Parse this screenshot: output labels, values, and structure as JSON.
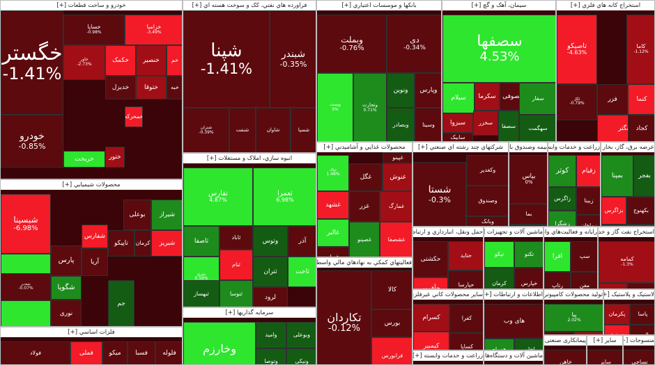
{
  "colors": {
    "strong_green": "#2ee62e",
    "green": "#1d8c1d",
    "dark_green": "#145c14",
    "neutral_dark": "#551012",
    "dark_red": "#5c0a0e",
    "red": "#a20e16",
    "bright_red": "#f21b27",
    "header_bg": "#ffffff"
  },
  "sectors": [
    {
      "id": "auto",
      "title": "خودرو و ساخت قطعات [+]",
      "tiles": [
        {
          "n": "خگستر",
          "p": "-1.41%",
          "c": "dark_red"
        },
        {
          "n": "خودرو",
          "p": "-0.85%",
          "c": "dark_red"
        },
        {
          "n": "خساپا",
          "p": "-0.98%",
          "c": "dark_red"
        },
        {
          "n": "خزامیا",
          "p": "-3.49%",
          "c": "bright_red"
        },
        {
          "n": "خاور",
          "p": "-2.73%",
          "c": "red"
        },
        {
          "n": "خکمک",
          "p": "",
          "c": "bright_red"
        },
        {
          "n": "خنصیر",
          "p": "",
          "c": "red"
        },
        {
          "n": "خم",
          "p": "",
          "c": "bright_red"
        },
        {
          "n": "خدیزل",
          "p": "",
          "c": "dark_red"
        },
        {
          "n": "ختوقا",
          "p": "",
          "c": "red"
        },
        {
          "n": "خبه",
          "p": "",
          "c": "dark_red"
        },
        {
          "n": "خریخت",
          "p": "",
          "c": "strong_green"
        },
        {
          "n": "ختور",
          "p": "",
          "c": "red"
        },
        {
          "n": "خمحرکه",
          "p": "",
          "c": "bright_red"
        }
      ]
    },
    {
      "id": "refining",
      "title": "فراورده هاي نفتي، كک و سوخت هسته اي [+]",
      "tiles": [
        {
          "n": "شپنا",
          "p": "-1.41%",
          "c": "dark_red"
        },
        {
          "n": "شبندر",
          "p": "-0.35%",
          "c": "dark_red"
        },
        {
          "n": "شتران",
          "p": "-0.39%",
          "c": "dark_red"
        },
        {
          "n": "شنفت",
          "p": "",
          "c": "dark_red"
        },
        {
          "n": "شاوان",
          "p": "",
          "c": "dark_red"
        },
        {
          "n": "شسپا",
          "p": "",
          "c": "dark_red"
        }
      ]
    },
    {
      "id": "banks",
      "title": "بانكها و موسسات اعتباري [+]",
      "tiles": [
        {
          "n": "وبملت",
          "p": "-0.76%",
          "c": "dark_red"
        },
        {
          "n": "دی",
          "p": "-0.34%",
          "c": "dark_red"
        },
        {
          "n": "وپست",
          "p": "5%",
          "c": "strong_green"
        },
        {
          "n": "وتجارت",
          "p": "0.71%",
          "c": "green"
        },
        {
          "n": "ونوین",
          "p": "",
          "c": "dark_green"
        },
        {
          "n": "وپارس",
          "p": "",
          "c": "dark_red"
        },
        {
          "n": "وبصادر",
          "p": "",
          "c": "dark_green"
        },
        {
          "n": "وسینا",
          "p": "",
          "c": "dark_red"
        }
      ]
    },
    {
      "id": "cement",
      "title": "سيمان، آهک و گچ [+]",
      "tiles": [
        {
          "n": "سصفها",
          "p": "4.53%",
          "c": "strong_green"
        },
        {
          "n": "سیلام",
          "p": "",
          "c": "strong_green"
        },
        {
          "n": "سکرما",
          "p": "",
          "c": "red"
        },
        {
          "n": "سصوفی",
          "p": "",
          "c": "dark_red"
        },
        {
          "n": "سبزوا",
          "p": "",
          "c": "red"
        },
        {
          "n": "سخزر",
          "p": "",
          "c": "red"
        },
        {
          "n": "سابیک",
          "p": "",
          "c": "dark_red"
        },
        {
          "n": "سصفا",
          "p": "",
          "c": "dark_green"
        },
        {
          "n": "سفار",
          "p": "",
          "c": "green"
        },
        {
          "n": "سهگمت",
          "p": "",
          "c": "dark_green"
        }
      ]
    },
    {
      "id": "metalmine",
      "title": "استخراج كانه هاي فلزي [+]",
      "tiles": [
        {
          "n": "تاصیکو",
          "p": "-4.63%",
          "c": "bright_red"
        },
        {
          "n": "کاما",
          "p": "-1.12%",
          "c": "red"
        },
        {
          "n": "کگل",
          "p": "-0.79%",
          "c": "dark_red"
        },
        {
          "n": "فزر",
          "p": "",
          "c": "dark_red"
        },
        {
          "n": "کنما",
          "p": "",
          "c": "bright_red"
        },
        {
          "n": "کهنگتر",
          "p": "",
          "c": "bright_red"
        },
        {
          "n": "کجاد",
          "p": "",
          "c": "dark_red"
        },
        {
          "n": "کچاد",
          "p": "",
          "c": "dark_red"
        }
      ]
    },
    {
      "id": "chemical",
      "title": "محصولات شيميايي [+]",
      "tiles": [
        {
          "n": "شبسینا",
          "p": "-6.98%",
          "c": "bright_red"
        },
        {
          "n": "شیراز",
          "p": "",
          "c": "green"
        },
        {
          "n": "بوعلی",
          "p": "",
          "c": "dark_red"
        },
        {
          "n": "پارس",
          "p": "",
          "c": "dark_red"
        },
        {
          "n": "شفارس",
          "p": "",
          "c": "bright_red"
        },
        {
          "n": "تاپیکو",
          "p": "",
          "c": "dark_red"
        },
        {
          "n": "کرمان",
          "p": "",
          "c": "dark_red"
        },
        {
          "n": "شبریز",
          "p": "",
          "c": "bright_red"
        },
        {
          "n": "آریا",
          "p": "",
          "c": "dark_red"
        },
        {
          "n": "شگویا",
          "p": "",
          "c": "green"
        },
        {
          "n": "نوری",
          "p": "",
          "c": "dark_red"
        },
        {
          "n": "شپدیس",
          "p": "",
          "c": "strong_green"
        },
        {
          "n": "شغدیر",
          "p": "-0.07%",
          "c": "dark_red"
        },
        {
          "n": "جم",
          "p": "",
          "c": "dark_green"
        }
      ]
    },
    {
      "id": "realestate",
      "title": "انبوه سازي، املاک و مستغلات [+]",
      "tiles": [
        {
          "n": "تفارس",
          "p": "4.87%",
          "c": "strong_green"
        },
        {
          "n": "ثعمرا",
          "p": "6.98%",
          "c": "strong_green"
        },
        {
          "n": "ثاصفا",
          "p": "",
          "c": "green"
        },
        {
          "n": "ثشرق",
          "p": "6.59%",
          "c": "strong_green"
        },
        {
          "n": "وتوس",
          "p": "",
          "c": "dark_green"
        },
        {
          "n": "آذر",
          "p": "",
          "c": "dark_red"
        },
        {
          "n": "ثتران",
          "p": "",
          "c": "dark_green"
        },
        {
          "n": "ثاخت",
          "p": "",
          "c": "strong_green"
        },
        {
          "n": "ثاباد",
          "p": "",
          "c": "dark_red"
        },
        {
          "n": "ثنام",
          "p": "",
          "c": "bright_red"
        },
        {
          "n": "ثبهساز",
          "p": "",
          "c": "dark_green"
        },
        {
          "n": "ثنوسا",
          "p": "",
          "c": "green"
        },
        {
          "n": "لرود",
          "p": "",
          "c": "dark_red"
        },
        {
          "n": "تسکن",
          "p": "",
          "c": "strong_green"
        }
      ]
    },
    {
      "id": "food",
      "title": "محصولات غذايي و آشاميدني [+]",
      "tiles": [
        {
          "n": "غپاک",
          "p": "1.48%",
          "c": "strong_green"
        },
        {
          "n": "غنوش",
          "p": "",
          "c": "red"
        },
        {
          "n": "غگل",
          "p": "",
          "c": "dark_red"
        },
        {
          "n": "غشهد",
          "p": "",
          "c": "bright_red"
        },
        {
          "n": "غدام",
          "p": "",
          "c": "dark_green"
        },
        {
          "n": "غزر",
          "p": "",
          "c": "dark_red"
        },
        {
          "n": "غمارگ",
          "p": "",
          "c": "red"
        },
        {
          "n": "غالبر",
          "p": "",
          "c": "strong_green"
        },
        {
          "n": "غبهار",
          "p": "",
          "c": "dark_red"
        },
        {
          "n": "غصینو",
          "p": "",
          "c": "green"
        },
        {
          "n": "غشصفا",
          "p": "",
          "c": "bright_red"
        },
        {
          "n": "غپینو",
          "p": "",
          "c": "dark_red"
        }
      ]
    },
    {
      "id": "multi",
      "title": "شرکتهاي چند رشته اي صنعتي [+]",
      "tiles": [
        {
          "n": "شستا",
          "p": "-0.3%",
          "c": "dark_red"
        },
        {
          "n": "وکغدیر",
          "p": "",
          "c": "dark_red"
        },
        {
          "n": "وصندوق",
          "p": "",
          "c": "dark_red"
        },
        {
          "n": "وبانک",
          "p": "",
          "c": "dark_red"
        },
        {
          "n": "وسپه",
          "p": "",
          "c": "red"
        }
      ]
    },
    {
      "id": "insurance",
      "title": "بیمه وصندوق بازنشستگی [+]",
      "tiles": [
        {
          "n": "بپاس",
          "p": "0%",
          "c": "dark_red"
        },
        {
          "n": "بما",
          "p": "",
          "c": "dark_red"
        },
        {
          "n": "دانا",
          "p": "",
          "c": "dark_red"
        },
        {
          "n": "بالبر",
          "p": "",
          "c": "dark_red"
        }
      ]
    },
    {
      "id": "agri",
      "title": "زراعت و خدمات وابسته [+]",
      "tiles": [
        {
          "n": "کوثر",
          "p": "",
          "c": "green"
        },
        {
          "n": "زاگرس",
          "p": "",
          "c": "dark_green"
        },
        {
          "n": "زقیام",
          "p": "",
          "c": "bright_red"
        },
        {
          "n": "زشگزا",
          "p": "",
          "c": "green"
        },
        {
          "n": "زبینا",
          "p": "",
          "c": "dark_red"
        },
        {
          "n": "زماهان",
          "p": "",
          "c": "dark_red"
        }
      ]
    },
    {
      "id": "wholesale",
      "title": "عرضه برق، گاز، بخار و آب گرم [+]",
      "tiles": [
        {
          "n": "بمپنا",
          "p": "",
          "c": "green"
        },
        {
          "n": "بفجر",
          "p": "",
          "c": "dark_green"
        },
        {
          "n": "بزاگرس",
          "p": "",
          "c": "bright_red"
        },
        {
          "n": "بکهنوج",
          "p": "",
          "c": "dark_red"
        },
        {
          "n": "بسویچ",
          "p": "",
          "c": "red"
        }
      ]
    },
    {
      "id": "basicmetals",
      "title": "فلزات اساسي [+]",
      "tiles": [
        {
          "n": "فلوله",
          "p": "",
          "c": "dark_red"
        },
        {
          "n": "فسبا",
          "p": "",
          "c": "dark_red"
        },
        {
          "n": "میکو",
          "p": "",
          "c": "dark_red"
        },
        {
          "n": "فملی",
          "p": "",
          "c": "bright_red"
        },
        {
          "n": "فولاد",
          "p": "",
          "c": "dark_red"
        },
        {
          "n": "ذوب",
          "p": "",
          "c": "dark_red"
        }
      ]
    },
    {
      "id": "investment",
      "title": "سرمايه گذاريها [+]",
      "tiles": [
        {
          "n": "وخارزم",
          "p": "",
          "c": "strong_green"
        },
        {
          "n": "وامید",
          "p": "",
          "c": "dark_green"
        },
        {
          "n": "وبوعلی",
          "p": "",
          "c": "dark_green"
        },
        {
          "n": "وتوصا",
          "p": "",
          "c": "dark_green"
        },
        {
          "n": "ونیکی",
          "p": "",
          "c": "dark_green"
        },
        {
          "n": "وسکاب",
          "p": "",
          "c": "green"
        }
      ]
    },
    {
      "id": "auxiliary",
      "title": "فعاليتهاي كمكي به نهادهاي مالي واسط [+]",
      "tiles": [
        {
          "n": "تکاردان",
          "p": "-0.12%",
          "c": "dark_red"
        },
        {
          "n": "کالا",
          "p": "",
          "c": "dark_red"
        },
        {
          "n": "بورس",
          "p": "",
          "c": "dark_red"
        },
        {
          "n": "فرابورس",
          "p": "",
          "c": "bright_red"
        },
        {
          "n": "اطلس",
          "p": "",
          "c": "dark_red"
        },
        {
          "n": "مفاخر",
          "p": "",
          "c": "dark_red"
        }
      ]
    },
    {
      "id": "transport",
      "title": "حمل ونقل، انبارداري و ارتباطات [+]",
      "tiles": [
        {
          "n": "حکشتی",
          "p": "",
          "c": "dark_red"
        },
        {
          "n": "حآفرین",
          "p": "",
          "c": "bright_red"
        },
        {
          "n": "حتاید",
          "p": "",
          "c": "red"
        },
        {
          "n": "حپارسا",
          "p": "",
          "c": "dark_red"
        }
      ]
    },
    {
      "id": "machinery",
      "title": "ماشين آلات و تجهيزات [+]",
      "tiles": [
        {
          "n": "تپکو",
          "p": "",
          "c": "strong_green"
        },
        {
          "n": "تکنو",
          "p": "",
          "c": "green"
        },
        {
          "n": "کرمان",
          "p": "",
          "c": "dark_green"
        },
        {
          "n": "خپارس",
          "p": "",
          "c": "dark_red"
        }
      ]
    },
    {
      "id": "pharma",
      "title": "مواد و محصولات دارويي [+]",
      "tiles": [
        {
          "n": "دتماد",
          "p": "",
          "c": "dark_red"
        },
        {
          "n": "دپارس",
          "p": "",
          "c": "green"
        },
        {
          "n": "دعبید",
          "p": "",
          "c": "dark_red"
        },
        {
          "n": "دالبر",
          "p": "",
          "c": "red"
        },
        {
          "n": "دجابر",
          "p": "",
          "c": "dark_green"
        }
      ]
    },
    {
      "id": "oilgas",
      "title": "استخراج نفت گاز و خدمات جنبي [+]",
      "tiles": [
        {
          "n": "کمامه",
          "p": "-1.3%",
          "c": "red"
        },
        {
          "n": "حفاری",
          "p": "",
          "c": "red"
        },
        {
          "n": "شاوان",
          "p": "",
          "c": "dark_red"
        }
      ]
    },
    {
      "id": "other",
      "title": "ساير محصولات كاني غيرفلزي [+]",
      "tiles": [
        {
          "n": "کسرام",
          "p": "",
          "c": "red"
        },
        {
          "n": "کیمبیر",
          "p": "",
          "c": "bright_red"
        },
        {
          "n": "کفرا",
          "p": "",
          "c": "dark_red"
        },
        {
          "n": "کساپا",
          "p": "",
          "c": "dark_red"
        }
      ]
    },
    {
      "id": "it",
      "title": "رايانه و فعاليت‌هاي وابسته به آن [+]",
      "tiles": [
        {
          "n": "افرا",
          "p": "",
          "c": "strong_green"
        },
        {
          "n": "سپ",
          "p": "",
          "c": "dark_red"
        },
        {
          "n": "رتاپ",
          "p": "",
          "c": "dark_red"
        },
        {
          "n": "مفن",
          "p": "",
          "c": "dark_red"
        }
      ]
    },
    {
      "id": "telecom",
      "title": "اطلاعات و ارتباطات [+]",
      "tiles": [
        {
          "n": "های وب",
          "p": "",
          "c": "dark_red"
        },
        {
          "n": "همراه",
          "p": "",
          "c": "green"
        },
        {
          "n": "اخابر",
          "p": "",
          "c": "dark_green"
        }
      ]
    },
    {
      "id": "electrical",
      "title": "توليد محصولات كامپيوتري الكترونيكي ونوري [+]",
      "tiles": [
        {
          "n": "پیا",
          "p": "2.02%",
          "c": "green"
        },
        {
          "n": "مرقام",
          "p": "",
          "c": "dark_red"
        },
        {
          "n": "لپارس",
          "p": "",
          "c": "red"
        }
      ]
    },
    {
      "id": "plastic",
      "title": "لاستيک و پلاستيک [+]",
      "tiles": [
        {
          "n": "پکرمان",
          "p": "",
          "c": "red"
        },
        {
          "n": "پاسا",
          "p": "",
          "c": "dark_red"
        },
        {
          "n": "پدرخش",
          "p": "",
          "c": "bright_red"
        },
        {
          "n": "پلاست",
          "p": "",
          "c": "dark_red"
        }
      ]
    },
    {
      "id": "agriculture",
      "title": "زراعت و خدمات وابسته [+]",
      "tiles": [
        {
          "n": "زفارس",
          "p": "",
          "c": "dark_red"
        },
        {
          "n": "زمگسا",
          "p": "",
          "c": "dark_red"
        }
      ]
    },
    {
      "id": "electrical_machinery",
      "title": "ماشين آلات و دستگاه‌هاي برقي [+]",
      "tiles": [
        {
          "n": "بکاب",
          "p": "",
          "c": "dark_red"
        },
        {
          "n": "بالاس",
          "p": "",
          "c": "dark_green"
        }
      ]
    },
    {
      "id": "contracting",
      "title": "پیمانکاری صنعتی [+]",
      "tiles": [
        {
          "n": "خاهن",
          "p": "",
          "c": "dark_red"
        }
      ]
    },
    {
      "id": "others2",
      "title": "ساير [+]",
      "tiles": [
        {
          "n": "ساير",
          "p": "",
          "c": "dark_red"
        }
      ]
    },
    {
      "id": "textile",
      "title": "منسوجات [+]",
      "tiles": [
        {
          "n": "نساجی",
          "p": "",
          "c": "dark_red"
        }
      ]
    }
  ]
}
